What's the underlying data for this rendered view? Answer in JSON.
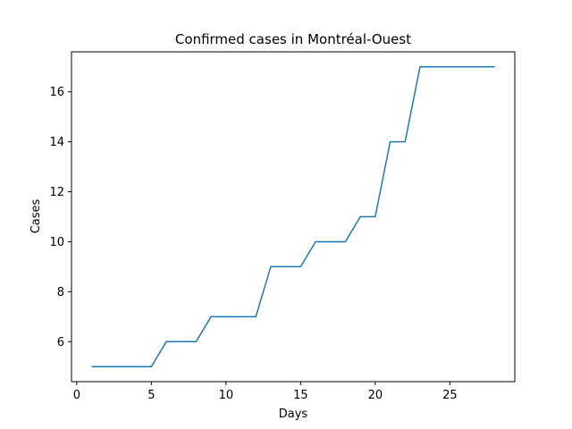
{
  "chart_data": {
    "type": "line",
    "title": "Confirmed cases in Montréal-Ouest",
    "xlabel": "Days",
    "ylabel": "Cases",
    "xlim": [
      -0.35,
      29.35
    ],
    "ylim": [
      4.4,
      17.6
    ],
    "xticks": [
      0,
      5,
      10,
      15,
      20,
      25
    ],
    "yticks": [
      6,
      8,
      10,
      12,
      14,
      16
    ],
    "grid": false,
    "series": [
      {
        "color": "#1f77b4",
        "x": [
          1,
          2,
          3,
          4,
          5,
          6,
          7,
          8,
          9,
          10,
          11,
          12,
          13,
          14,
          15,
          16,
          17,
          18,
          19,
          20,
          21,
          22,
          23,
          24,
          25,
          26,
          27,
          28
        ],
        "y": [
          5,
          5,
          5,
          5,
          5,
          6,
          6,
          6,
          7,
          7,
          7,
          7,
          9,
          9,
          9,
          10,
          10,
          10,
          11,
          11,
          14,
          14,
          17,
          17,
          17,
          17,
          17,
          17
        ]
      }
    ]
  }
}
